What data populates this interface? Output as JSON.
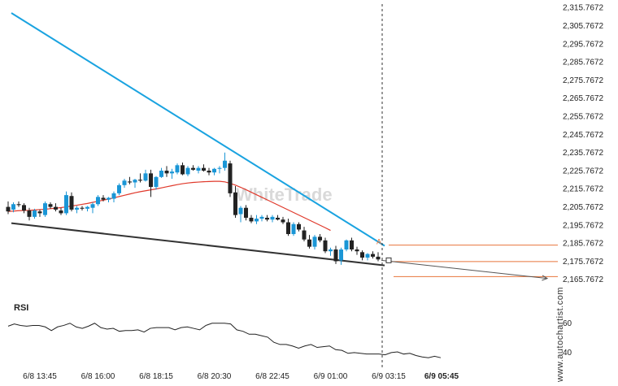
{
  "chart_data": [
    {
      "type": "candlestick",
      "colors": {
        "up": "#1a96d6",
        "down": "#222222",
        "ma": "#e0392b",
        "trend_upper": "#1aa3e0",
        "trend_lower": "#333333",
        "level": "#e8743b",
        "cursor": "#333333"
      },
      "y_ticks": [
        "2,315.7672",
        "2,305.7672",
        "2,295.7672",
        "2,285.7672",
        "2,275.7672",
        "2,265.7672",
        "2,255.7672",
        "2,245.7672",
        "2,235.7672",
        "2,225.7672",
        "2,215.7672",
        "2,205.7672",
        "2,195.7672",
        "2,185.7672",
        "2,175.7672",
        "2,165.7672"
      ],
      "ylim": [
        2164.5,
        2317
      ],
      "x_ticks": [
        "6/8 13:45",
        "6/8 16:00",
        "6/8 18:15",
        "6/8 20:30",
        "6/8 22:45",
        "6/9 01:00",
        "6/9 03:15",
        "6/9 05:45"
      ],
      "x_labels_at_bar": [
        6,
        17,
        28,
        39,
        50,
        61,
        72,
        82
      ],
      "candles": [
        [
          2205.5,
          2208.5,
          2201.5,
          2203.0
        ],
        [
          2204.0,
          2208.0,
          2202.5,
          2207.0
        ],
        [
          2207.0,
          2208.5,
          2205.5,
          2206.5
        ],
        [
          2206.5,
          2207.5,
          2202.0,
          2203.5
        ],
        [
          2203.5,
          2205.0,
          2198.0,
          2200.0
        ],
        [
          2200.0,
          2204.5,
          2199.0,
          2203.5
        ],
        [
          2203.0,
          2204.0,
          2200.0,
          2202.0
        ],
        [
          2201.0,
          2208.5,
          2200.0,
          2207.5
        ],
        [
          2207.0,
          2208.0,
          2204.5,
          2205.5
        ],
        [
          2205.5,
          2207.5,
          2203.0,
          2204.0
        ],
        [
          2203.5,
          2205.0,
          2201.0,
          2202.0
        ],
        [
          2202.0,
          2214.0,
          2201.0,
          2212.0
        ],
        [
          2211.5,
          2213.5,
          2203.0,
          2204.0
        ],
        [
          2204.0,
          2206.0,
          2202.0,
          2205.0
        ],
        [
          2205.0,
          2206.0,
          2203.5,
          2204.5
        ],
        [
          2204.5,
          2206.0,
          2203.0,
          2205.5
        ],
        [
          2205.0,
          2208.0,
          2202.0,
          2207.0
        ],
        [
          2207.0,
          2212.0,
          2206.0,
          2211.0
        ],
        [
          2210.5,
          2212.0,
          2208.5,
          2209.5
        ],
        [
          2209.5,
          2211.0,
          2208.0,
          2210.5
        ],
        [
          2210.0,
          2214.0,
          2208.0,
          2213.0
        ],
        [
          2213.0,
          2218.5,
          2212.0,
          2217.5
        ],
        [
          2217.5,
          2221.0,
          2216.0,
          2220.0
        ],
        [
          2219.5,
          2222.0,
          2218.0,
          2219.0
        ],
        [
          2219.0,
          2221.0,
          2216.0,
          2220.5
        ],
        [
          2220.5,
          2224.0,
          2219.0,
          2220.0
        ],
        [
          2220.0,
          2226.0,
          2219.5,
          2224.0
        ],
        [
          2224.0,
          2226.0,
          2211.0,
          2216.5
        ],
        [
          2216.5,
          2222.5,
          2215.0,
          2222.0
        ],
        [
          2222.0,
          2227.0,
          2221.5,
          2225.5
        ],
        [
          2225.5,
          2228.0,
          2222.0,
          2224.0
        ],
        [
          2224.0,
          2226.5,
          2221.0,
          2225.0
        ],
        [
          2224.5,
          2229.5,
          2223.5,
          2228.5
        ],
        [
          2228.5,
          2230.0,
          2223.0,
          2223.5
        ],
        [
          2223.5,
          2228.0,
          2222.5,
          2227.0
        ],
        [
          2227.0,
          2228.5,
          2225.5,
          2226.0
        ],
        [
          2225.5,
          2228.0,
          2224.0,
          2227.0
        ],
        [
          2227.0,
          2229.0,
          2225.0,
          2225.5
        ],
        [
          2225.5,
          2227.0,
          2223.0,
          2224.5
        ],
        [
          2224.5,
          2227.0,
          2223.0,
          2226.5
        ],
        [
          2226.5,
          2228.0,
          2224.0,
          2227.0
        ],
        [
          2227.0,
          2235.5,
          2225.5,
          2231.0
        ],
        [
          2229.5,
          2231.0,
          2211.0,
          2213.0
        ],
        [
          2213.5,
          2217.0,
          2199.5,
          2201.0
        ],
        [
          2201.5,
          2206.0,
          2197.0,
          2205.0
        ],
        [
          2205.0,
          2206.5,
          2198.0,
          2199.5
        ],
        [
          2199.5,
          2201.0,
          2196.5,
          2197.5
        ],
        [
          2197.5,
          2201.0,
          2196.0,
          2199.0
        ],
        [
          2199.0,
          2201.0,
          2197.5,
          2200.0
        ],
        [
          2199.5,
          2201.0,
          2197.5,
          2198.5
        ],
        [
          2198.5,
          2201.0,
          2197.0,
          2200.0
        ],
        [
          2199.5,
          2201.0,
          2198.0,
          2198.5
        ],
        [
          2198.5,
          2200.0,
          2196.0,
          2197.0
        ],
        [
          2197.0,
          2199.0,
          2189.5,
          2190.5
        ],
        [
          2190.5,
          2197.0,
          2189.5,
          2196.0
        ],
        [
          2196.0,
          2197.0,
          2192.0,
          2193.0
        ],
        [
          2192.5,
          2194.5,
          2186.5,
          2187.5
        ],
        [
          2187.5,
          2190.0,
          2182.5,
          2183.5
        ],
        [
          2183.5,
          2190.0,
          2182.0,
          2189.0
        ],
        [
          2189.0,
          2190.5,
          2186.0,
          2187.0
        ],
        [
          2187.0,
          2188.5,
          2180.0,
          2181.0
        ],
        [
          2181.0,
          2183.0,
          2178.5,
          2182.0
        ],
        [
          2182.0,
          2184.0,
          2174.0,
          2175.5
        ],
        [
          2176.0,
          2183.0,
          2173.5,
          2182.0
        ],
        [
          2182.0,
          2187.5,
          2181.0,
          2187.0
        ],
        [
          2187.0,
          2188.5,
          2181.0,
          2182.0
        ],
        [
          2182.0,
          2183.5,
          2179.0,
          2181.0
        ],
        [
          2180.5,
          2181.5,
          2176.0,
          2177.5
        ],
        [
          2177.5,
          2180.0,
          2176.0,
          2179.5
        ],
        [
          2179.5,
          2181.0,
          2177.0,
          2178.0
        ],
        [
          2178.0,
          2180.5,
          2175.5,
          2176.5
        ]
      ],
      "ma": [
        2203.0,
        2203.2,
        2203.4,
        2203.5,
        2203.6,
        2203.8,
        2204.0,
        2204.2,
        2204.5,
        2204.8,
        2205.1,
        2205.5,
        2206.0,
        2206.4,
        2206.9,
        2207.4,
        2208.0,
        2208.6,
        2209.2,
        2209.8,
        2210.5,
        2211.2,
        2211.9,
        2212.6,
        2213.3,
        2213.9,
        2214.4,
        2214.9,
        2215.4,
        2216.0,
        2216.6,
        2217.2,
        2217.8,
        2218.3,
        2218.7,
        2219.0,
        2219.2,
        2219.4,
        2219.5,
        2219.6,
        2219.6,
        2219.3,
        2218.5,
        2217.5,
        2216.3,
        2215.0,
        2213.6,
        2212.2,
        2210.8,
        2209.4,
        2208.0,
        2206.6,
        2205.2,
        2203.8,
        2202.4,
        2201.0,
        2199.6,
        2198.2,
        2196.8,
        2195.4,
        2194.0,
        2192.5
      ],
      "trend_upper": {
        "points": [
          [
            0,
            2312.5
          ],
          [
            70,
            2184.0
          ]
        ]
      },
      "trend_lower": {
        "points": [
          [
            0,
            2196.5
          ],
          [
            70,
            2173.2
          ]
        ]
      },
      "levels": [
        2184.4,
        2175.3,
        2167.0
      ],
      "forecast_arrow": {
        "from": [
          70,
          2176.0
        ],
        "to": [
          86,
          2166.0
        ]
      },
      "target_marker": "A",
      "watermark": "WhiteTrade"
    },
    {
      "type": "line",
      "title": "RSI",
      "y_ticks": [
        "60",
        "40"
      ],
      "ylim": [
        35,
        66
      ],
      "values": [
        57.5,
        59.0,
        58.0,
        57.5,
        58.0,
        58.0,
        57.0,
        54.5,
        57.0,
        58.0,
        59.5,
        57.0,
        56.0,
        57.5,
        59.5,
        56.5,
        55.5,
        56.0,
        54.0,
        54.5,
        54.5,
        55.0,
        53.5,
        56.0,
        56.5,
        56.5,
        56.5,
        55.0,
        56.5,
        57.0,
        56.0,
        55.0,
        58.0,
        59.5,
        59.5,
        59.5,
        59.0,
        55.0,
        54.0,
        52.0,
        52.0,
        51.0,
        50.0,
        46.5,
        45.0,
        45.0,
        44.0,
        42.5,
        44.0,
        45.0,
        43.0,
        43.5,
        44.0,
        41.5,
        41.0,
        39.0,
        39.5,
        39.0,
        38.5,
        38.5,
        38.5,
        38.0,
        39.5,
        40.0,
        38.5,
        39.0,
        37.5,
        36.5,
        36.0,
        37.0,
        36.0
      ]
    }
  ],
  "footer": {
    "site": "www.autochartist.com"
  }
}
